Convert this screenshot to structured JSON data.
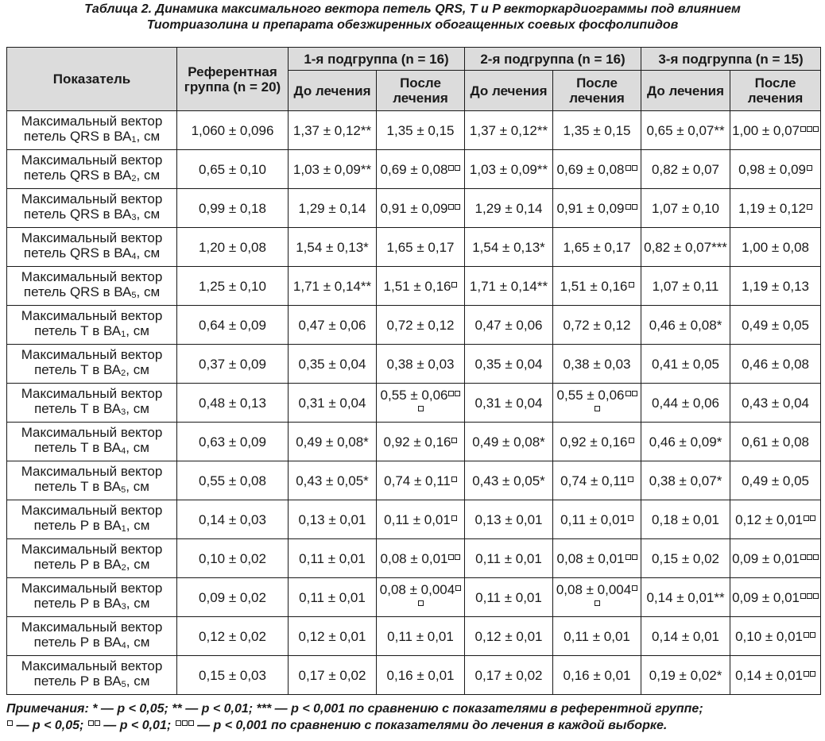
{
  "title": {
    "line1": "Таблица 2.  Динамика максимального вектора петель QRS, T и P векторкардиограммы под влиянием",
    "line2": "Тиотриазолина и препарата обезжиренных обогащенных соевых фосфолипидов"
  },
  "headers": {
    "indicator": "Показатель",
    "reference": "Референтная группа (n = 20)",
    "groups": [
      "1-я подгруппа (n = 16)",
      "2-я подгруппа (n = 16)",
      "3-я подгруппа (n = 15)"
    ],
    "before": "До лечения",
    "after": "После лечения"
  },
  "rows": [
    {
      "label_pre": "Максимальный вектор петель QRS в ВА",
      "label_sub": "1",
      "label_post": ", см",
      "cells": [
        {
          "v": "1,060 ± 0,096",
          "m": "",
          "b": 0
        },
        {
          "v": "1,37 ± 0,12",
          "m": "**",
          "b": 0
        },
        {
          "v": "1,35 ± 0,15",
          "m": "",
          "b": 0
        },
        {
          "v": "1,37 ± 0,12",
          "m": "**",
          "b": 0
        },
        {
          "v": "1,35 ± 0,15",
          "m": "",
          "b": 0
        },
        {
          "v": "0,65 ± 0,07",
          "m": "**",
          "b": 0
        },
        {
          "v": "1,00 ± 0,07",
          "m": "",
          "b": 3
        }
      ]
    },
    {
      "label_pre": "Максимальный вектор петель QRS в ВА",
      "label_sub": "2",
      "label_post": ", см",
      "cells": [
        {
          "v": "0,65 ± 0,10",
          "m": "",
          "b": 0
        },
        {
          "v": "1,03 ± 0,09",
          "m": "**",
          "b": 0
        },
        {
          "v": "0,69 ± 0,08",
          "m": "",
          "b": 2
        },
        {
          "v": "1,03 ± 0,09",
          "m": "**",
          "b": 0
        },
        {
          "v": "0,69 ± 0,08",
          "m": "",
          "b": 2
        },
        {
          "v": "0,82 ± 0,07",
          "m": "",
          "b": 0
        },
        {
          "v": "0,98 ± 0,09",
          "m": "",
          "b": 1
        }
      ]
    },
    {
      "label_pre": "Максимальный вектор петель QRS в ВА",
      "label_sub": "3",
      "label_post": ", см",
      "cells": [
        {
          "v": "0,99 ± 0,18",
          "m": "",
          "b": 0
        },
        {
          "v": "1,29 ± 0,14",
          "m": "",
          "b": 0
        },
        {
          "v": "0,91 ± 0,09",
          "m": "",
          "b": 2
        },
        {
          "v": "1,29 ± 0,14",
          "m": "",
          "b": 0
        },
        {
          "v": "0,91 ± 0,09",
          "m": "",
          "b": 2
        },
        {
          "v": "1,07 ± 0,10",
          "m": "",
          "b": 0
        },
        {
          "v": "1,19 ± 0,12",
          "m": "",
          "b": 1
        }
      ]
    },
    {
      "label_pre": "Максимальный вектор петель QRS в ВА",
      "label_sub": "4",
      "label_post": ", см",
      "cells": [
        {
          "v": "1,20 ± 0,08",
          "m": "",
          "b": 0
        },
        {
          "v": "1,54 ± 0,13",
          "m": "*",
          "b": 0
        },
        {
          "v": "1,65 ± 0,17",
          "m": "",
          "b": 0
        },
        {
          "v": "1,54 ± 0,13",
          "m": "*",
          "b": 0
        },
        {
          "v": "1,65 ± 0,17",
          "m": "",
          "b": 0
        },
        {
          "v": "0,82 ± 0,07",
          "m": "***",
          "b": 0
        },
        {
          "v": "1,00 ± 0,08",
          "m": "",
          "b": 0
        }
      ]
    },
    {
      "label_pre": "Максимальный вектор петель QRS в ВА",
      "label_sub": "5",
      "label_post": ", см",
      "cells": [
        {
          "v": "1,25 ± 0,10",
          "m": "",
          "b": 0
        },
        {
          "v": "1,71 ± 0,14",
          "m": "**",
          "b": 0
        },
        {
          "v": "1,51 ± 0,16",
          "m": "",
          "b": 1
        },
        {
          "v": "1,71 ± 0,14",
          "m": "**",
          "b": 0
        },
        {
          "v": "1,51 ± 0,16",
          "m": "",
          "b": 1
        },
        {
          "v": "1,07 ± 0,11",
          "m": "",
          "b": 0
        },
        {
          "v": "1,19 ± 0,13",
          "m": "",
          "b": 0
        }
      ]
    },
    {
      "label_pre": "Максимальный вектор петель Т в ВА",
      "label_sub": "1",
      "label_post": ", см",
      "cells": [
        {
          "v": "0,64 ± 0,09",
          "m": "",
          "b": 0
        },
        {
          "v": "0,47 ± 0,06",
          "m": "",
          "b": 0
        },
        {
          "v": "0,72 ± 0,12",
          "m": "",
          "b": 0
        },
        {
          "v": "0,47 ± 0,06",
          "m": "",
          "b": 0
        },
        {
          "v": "0,72 ± 0,12",
          "m": "",
          "b": 0
        },
        {
          "v": "0,46 ± 0,08",
          "m": "*",
          "b": 0
        },
        {
          "v": "0,49 ± 0,05",
          "m": "",
          "b": 0
        }
      ]
    },
    {
      "label_pre": "Максимальный вектор петель Т в ВА",
      "label_sub": "2",
      "label_post": ", см",
      "cells": [
        {
          "v": "0,37 ± 0,09",
          "m": "",
          "b": 0
        },
        {
          "v": "0,35 ± 0,04",
          "m": "",
          "b": 0
        },
        {
          "v": "0,38 ± 0,03",
          "m": "",
          "b": 0
        },
        {
          "v": "0,35 ± 0,04",
          "m": "",
          "b": 0
        },
        {
          "v": "0,38 ± 0,03",
          "m": "",
          "b": 0
        },
        {
          "v": "0,41 ± 0,05",
          "m": "",
          "b": 0
        },
        {
          "v": "0,46 ± 0,08",
          "m": "",
          "b": 0
        }
      ]
    },
    {
      "label_pre": "Максимальный вектор петель Т в ВА",
      "label_sub": "3",
      "label_post": ", см",
      "cells": [
        {
          "v": "0,48 ± 0,13",
          "m": "",
          "b": 0
        },
        {
          "v": "0,31 ± 0,04",
          "m": "",
          "b": 0
        },
        {
          "v": "0,55 ± 0,06",
          "m": "",
          "b": 3
        },
        {
          "v": "0,31 ± 0,04",
          "m": "",
          "b": 0
        },
        {
          "v": "0,55 ± 0,06",
          "m": "",
          "b": 3
        },
        {
          "v": "0,44 ± 0,06",
          "m": "",
          "b": 0
        },
        {
          "v": "0,43 ± 0,04",
          "m": "",
          "b": 0
        }
      ]
    },
    {
      "label_pre": "Максимальный вектор петель Т в ВА",
      "label_sub": "4",
      "label_post": ", см",
      "cells": [
        {
          "v": "0,63 ± 0,09",
          "m": "",
          "b": 0
        },
        {
          "v": "0,49 ± 0,08",
          "m": "*",
          "b": 0
        },
        {
          "v": "0,92 ± 0,16",
          "m": "",
          "b": 1
        },
        {
          "v": "0,49 ± 0,08",
          "m": "*",
          "b": 0
        },
        {
          "v": "0,92 ± 0,16",
          "m": "",
          "b": 1
        },
        {
          "v": "0,46 ± 0,09",
          "m": "*",
          "b": 0
        },
        {
          "v": "0,61 ± 0,08",
          "m": "",
          "b": 0
        }
      ]
    },
    {
      "label_pre": "Максимальный вектор петель Т в ВА",
      "label_sub": "5",
      "label_post": ", см",
      "cells": [
        {
          "v": "0,55 ± 0,08",
          "m": "",
          "b": 0
        },
        {
          "v": "0,43 ± 0,05",
          "m": "*",
          "b": 0
        },
        {
          "v": "0,74 ± 0,11",
          "m": "",
          "b": 1
        },
        {
          "v": "0,43 ± 0,05",
          "m": "*",
          "b": 0
        },
        {
          "v": "0,74 ± 0,11",
          "m": "",
          "b": 1
        },
        {
          "v": "0,38 ± 0,07",
          "m": "*",
          "b": 0
        },
        {
          "v": "0,49 ± 0,05",
          "m": "",
          "b": 0
        }
      ]
    },
    {
      "label_pre": "Максимальный вектор петель Р в ВА",
      "label_sub": "1",
      "label_post": ", см",
      "cells": [
        {
          "v": "0,14 ± 0,03",
          "m": "",
          "b": 0
        },
        {
          "v": "0,13 ± 0,01",
          "m": "",
          "b": 0
        },
        {
          "v": "0,11 ± 0,01",
          "m": "",
          "b": 1
        },
        {
          "v": "0,13 ± 0,01",
          "m": "",
          "b": 0
        },
        {
          "v": "0,11 ± 0,01",
          "m": "",
          "b": 1
        },
        {
          "v": "0,18 ± 0,01",
          "m": "",
          "b": 0
        },
        {
          "v": "0,12 ± 0,01",
          "m": "",
          "b": 2
        }
      ]
    },
    {
      "label_pre": "Максимальный вектор петель Р в ВА",
      "label_sub": "2",
      "label_post": ", см",
      "cells": [
        {
          "v": "0,10 ± 0,02",
          "m": "",
          "b": 0
        },
        {
          "v": "0,11 ± 0,01",
          "m": "",
          "b": 0
        },
        {
          "v": "0,08 ± 0,01",
          "m": "",
          "b": 2
        },
        {
          "v": "0,11 ± 0,01",
          "m": "",
          "b": 0
        },
        {
          "v": "0,08 ± 0,01",
          "m": "",
          "b": 2
        },
        {
          "v": "0,15 ± 0,02",
          "m": "",
          "b": 0
        },
        {
          "v": "0,09 ± 0,01",
          "m": "",
          "b": 3
        }
      ]
    },
    {
      "label_pre": "Максимальный вектор петель Р в ВА",
      "label_sub": "3",
      "label_post": ", см",
      "cells": [
        {
          "v": "0,09 ± 0,02",
          "m": "",
          "b": 0
        },
        {
          "v": "0,11 ± 0,01",
          "m": "",
          "b": 0
        },
        {
          "v": "0,08 ± 0,004",
          "m": "",
          "b": 2
        },
        {
          "v": "0,11 ± 0,01",
          "m": "",
          "b": 0
        },
        {
          "v": "0,08 ± 0,004",
          "m": "",
          "b": 2
        },
        {
          "v": "0,14 ± 0,01",
          "m": "**",
          "b": 0
        },
        {
          "v": "0,09 ± 0,01",
          "m": "",
          "b": 3
        }
      ]
    },
    {
      "label_pre": "Максимальный вектор петель Р в ВА",
      "label_sub": "4",
      "label_post": ", см",
      "cells": [
        {
          "v": "0,12 ± 0,02",
          "m": "",
          "b": 0
        },
        {
          "v": "0,12 ± 0,01",
          "m": "",
          "b": 0
        },
        {
          "v": "0,11 ± 0,01",
          "m": "",
          "b": 0
        },
        {
          "v": "0,12 ± 0,01",
          "m": "",
          "b": 0
        },
        {
          "v": "0,11 ± 0,01",
          "m": "",
          "b": 0
        },
        {
          "v": "0,14 ± 0,01",
          "m": "",
          "b": 0
        },
        {
          "v": "0,10 ± 0,01",
          "m": "",
          "b": 2
        }
      ]
    },
    {
      "label_pre": "Максимальный вектор петель Р в ВА",
      "label_sub": "5",
      "label_post": ", см",
      "cells": [
        {
          "v": "0,15 ± 0,03",
          "m": "",
          "b": 0
        },
        {
          "v": "0,17 ± 0,02",
          "m": "",
          "b": 0
        },
        {
          "v": "0,16 ± 0,01",
          "m": "",
          "b": 0
        },
        {
          "v": "0,17 ± 0,02",
          "m": "",
          "b": 0
        },
        {
          "v": "0,16 ± 0,01",
          "m": "",
          "b": 0
        },
        {
          "v": "0,19 ± 0,02",
          "m": "*",
          "b": 0
        },
        {
          "v": "0,14 ± 0,01",
          "m": "",
          "b": 2
        }
      ]
    }
  ],
  "notes": {
    "line1": "Примечания:  * — p < 0,05; ** — p < 0,01; *** — p < 0,001 по сравнению с показателями в референтной группе;",
    "line2_parts": [
      " — p < 0,05; ",
      " — p < 0,01; ",
      " — p < 0,001 по сравнению с показателями до лечения в каждой выборке."
    ]
  },
  "colors": {
    "header_bg": "#dcdcdc",
    "border": "#1a1a1a",
    "text": "#1a1a1a"
  }
}
